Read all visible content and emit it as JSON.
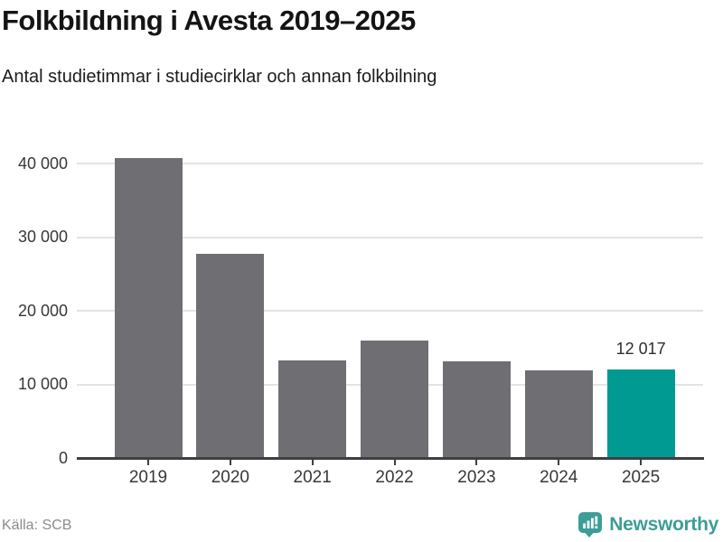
{
  "header": {
    "title": "Folkbildning i Avesta 2019–2025",
    "subtitle": "Antal studietimmar i studiecirklar och annan folkbilning"
  },
  "chart_data": {
    "type": "bar",
    "title": "Folkbildning i Avesta 2019–2025",
    "subtitle": "Antal studietimmar i studiecirklar och annan folkbilning",
    "categories": [
      "2019",
      "2020",
      "2021",
      "2022",
      "2023",
      "2024",
      "2025"
    ],
    "values": [
      40800,
      27800,
      13300,
      16000,
      13100,
      11900,
      12017
    ],
    "value_labels": [
      "",
      "",
      "",
      "",
      "",
      "",
      "12 017"
    ],
    "highlight_index": 6,
    "xlabel": "",
    "ylabel": "",
    "ylim": [
      0,
      42000
    ],
    "yticks": [
      0,
      10000,
      20000,
      30000,
      40000
    ],
    "ytick_labels": [
      "0",
      "10 000",
      "20 000",
      "30 000",
      "40 000"
    ],
    "grid": "horizontal",
    "legend": "none"
  },
  "footer": {
    "source": "Källa: SCB",
    "brand": "Newsworthy"
  },
  "colors": {
    "bar": "#6F6E73",
    "highlight": "#009A93",
    "brand": "#3C9E96",
    "grid": "#E3E3E3",
    "axis": "#3F3F42",
    "tick_label": "#38383C",
    "source_text": "#8C8C8C"
  }
}
